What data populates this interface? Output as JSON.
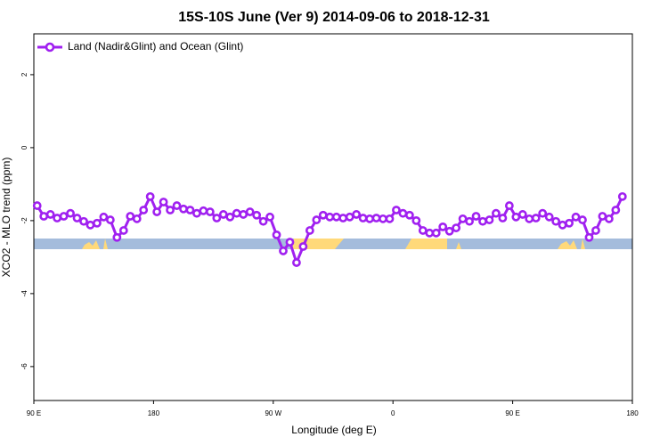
{
  "chart_data": {
    "type": "line",
    "title": "15S-10S June (Ver 9)   2014-09-06 to 2018-12-31",
    "x_label": "Longitude (deg E)",
    "y_label": "XCO2 - MLO trend (ppm)",
    "legend": "upper left",
    "xlim": [
      90,
      540
    ],
    "ylim": [
      -6.93,
      3.12
    ],
    "xticks": [
      {
        "value": 90,
        "label": "90 E"
      },
      180,
      {
        "value": 270,
        "label": "90 W"
      },
      {
        "value": 360,
        "label": "0"
      },
      {
        "value": 450,
        "label": "90 E"
      },
      {
        "value": 540,
        "label": "180"
      }
    ],
    "yticks": [
      2,
      0,
      -2,
      -4,
      -6
    ],
    "x": [
      92.5,
      97.5,
      102.5,
      107.5,
      112.5,
      117.5,
      122.5,
      127.5,
      132.5,
      137.5,
      142.5,
      147.5,
      152.5,
      157.5,
      162.5,
      167.5,
      172.5,
      177.5,
      182.5,
      187.5,
      192.5,
      197.5,
      202.5,
      207.5,
      212.5,
      217.5,
      222.5,
      227.5,
      232.5,
      237.5,
      242.5,
      247.5,
      252.5,
      257.5,
      262.5,
      267.5,
      272.5,
      277.5,
      282.5,
      287.5,
      292.5,
      297.5,
      302.5,
      307.5,
      312.5,
      317.5,
      322.5,
      327.5,
      332.5,
      337.5,
      342.5,
      347.5,
      352.5,
      357.5,
      362.5,
      367.5,
      372.5,
      377.5,
      382.5,
      387.5,
      392.5,
      397.5,
      402.5,
      407.5,
      412.5,
      417.5,
      422.5,
      427.5,
      432.5,
      437.5,
      442.5,
      447.5,
      452.5,
      457.5,
      462.5,
      467.5,
      472.5,
      477.5,
      482.5,
      487.5,
      492.5,
      497.5,
      502.5,
      507.5,
      512.5,
      517.5,
      522.5,
      527.5,
      532.5
    ],
    "series": [
      {
        "name": "Land (Nadir&Glint) and Ocean (Glint)",
        "color": "#a020f0",
        "values": [
          -1.59,
          -1.88,
          -1.83,
          -1.93,
          -1.88,
          -1.8,
          -1.93,
          -2.02,
          -2.12,
          -2.07,
          -1.9,
          -1.98,
          -2.46,
          -2.27,
          -1.88,
          -1.95,
          -1.71,
          -1.34,
          -1.76,
          -1.49,
          -1.71,
          -1.59,
          -1.68,
          -1.71,
          -1.8,
          -1.73,
          -1.76,
          -1.93,
          -1.83,
          -1.9,
          -1.8,
          -1.83,
          -1.76,
          -1.85,
          -2.02,
          -1.9,
          -2.39,
          -2.83,
          -2.59,
          -3.15,
          -2.71,
          -2.27,
          -1.98,
          -1.85,
          -1.9,
          -1.9,
          -1.93,
          -1.9,
          -1.83,
          -1.93,
          -1.95,
          -1.93,
          -1.95,
          -1.95,
          -1.71,
          -1.8,
          -1.85,
          -2.0,
          -2.27,
          -2.34,
          -2.34,
          -2.17,
          -2.29,
          -2.2,
          -1.95,
          -2.02,
          -1.88,
          -2.02,
          -1.98,
          -1.8,
          -1.93,
          -1.59,
          -1.9,
          -1.83,
          -1.95,
          -1.93,
          -1.8,
          -1.9,
          -2.02,
          -2.12,
          -2.07,
          -1.9,
          -1.98,
          -2.46,
          -2.27,
          -1.88,
          -1.95,
          -1.71,
          -1.34
        ]
      }
    ]
  }
}
